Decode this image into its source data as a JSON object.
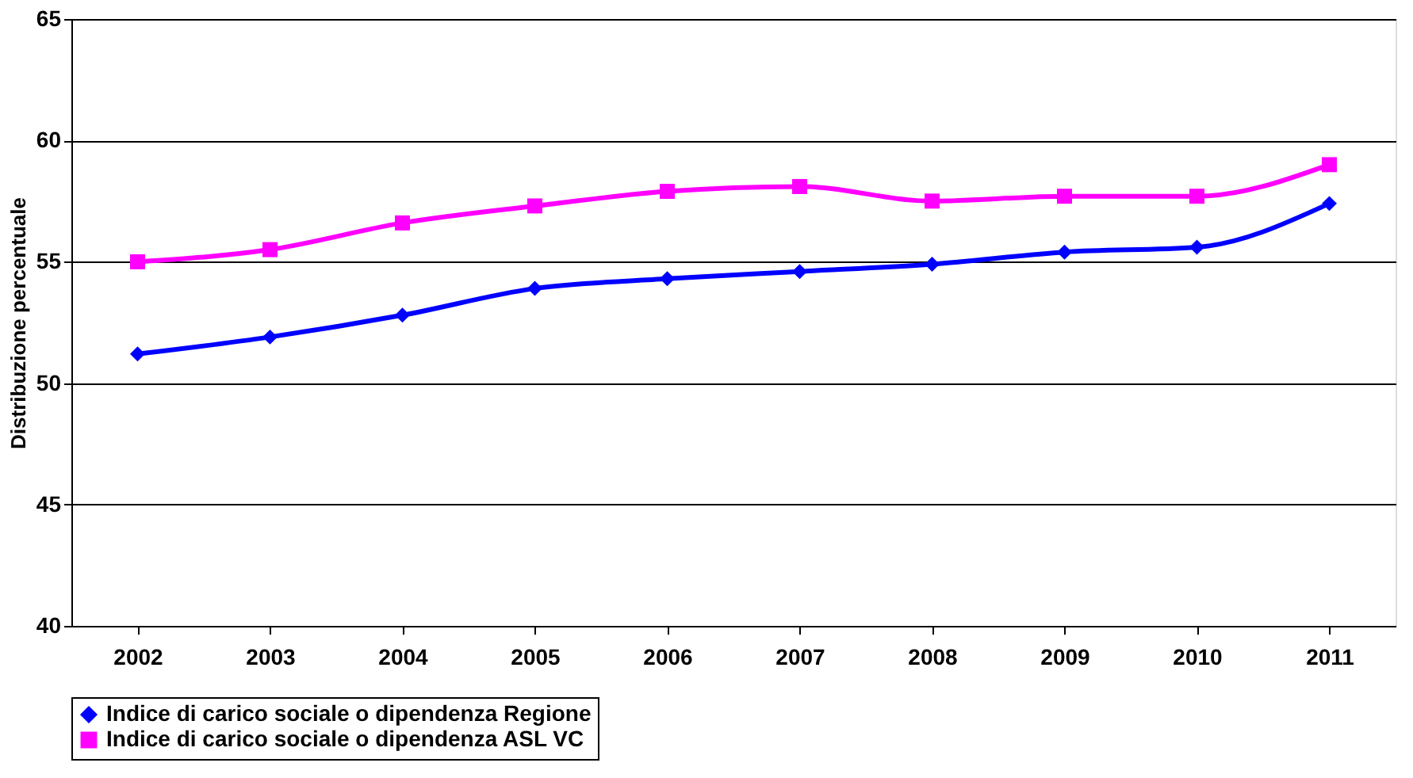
{
  "chart_data": {
    "type": "line",
    "ylabel": "Distribuzione percentuale",
    "categories": [
      "2002",
      "2003",
      "2004",
      "2005",
      "2006",
      "2007",
      "2008",
      "2009",
      "2010",
      "2011"
    ],
    "series": [
      {
        "name": "Indice di carico sociale o dipendenza Regione",
        "color": "#0000ff",
        "marker": "diamond",
        "values": [
          51.2,
          51.9,
          52.8,
          53.9,
          54.3,
          54.6,
          54.9,
          55.4,
          55.6,
          57.4
        ]
      },
      {
        "name": "Indice di carico sociale o dipendenza ASL VC",
        "color": "#ff00ff",
        "marker": "square",
        "values": [
          55.0,
          55.5,
          56.6,
          57.3,
          57.9,
          58.1,
          57.5,
          57.7,
          57.7,
          59.0
        ]
      }
    ],
    "ylim": [
      40,
      65
    ],
    "yticks": [
      40,
      45,
      50,
      55,
      60,
      65
    ],
    "grid": "y",
    "legend": "bottom",
    "line_style": "solid"
  }
}
